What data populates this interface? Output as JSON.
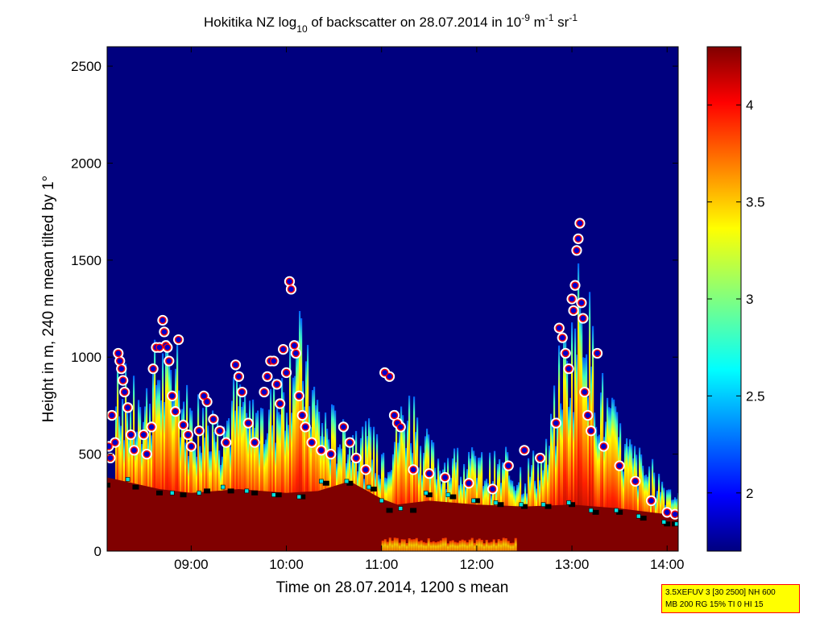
{
  "chart_data": {
    "type": "heatmap",
    "title": {
      "part1": "Hokitika NZ log",
      "sub": "10",
      "part2": " of backscatter on 28.07.2014 in 10",
      "sup1": "-9",
      "part3": " m",
      "sup2": "-1",
      "part4": " sr",
      "sup3": "-1"
    },
    "xlabel": "Time on 28.07.2014, 1200 s mean",
    "ylabel": "Height in m, 240 m mean tilted by 1°",
    "xlim": [
      "08:07",
      "14:07"
    ],
    "ylim": [
      0,
      2600
    ],
    "x_ticks": [
      "09:00",
      "10:00",
      "11:00",
      "12:00",
      "13:00",
      "14:00"
    ],
    "y_ticks": [
      "0",
      "500",
      "1000",
      "1500",
      "2000",
      "2500"
    ],
    "colorbar": {
      "range": [
        1.7,
        4.3
      ],
      "ticks": [
        "2",
        "2.5",
        "3",
        "3.5",
        "4"
      ]
    },
    "background_value": 1.7,
    "surface_layer": {
      "description_value": 4.3,
      "top_profile": [
        [
          "08:07",
          380
        ],
        [
          "08:40",
          320
        ],
        [
          "09:00",
          300
        ],
        [
          "09:30",
          320
        ],
        [
          "10:00",
          300
        ],
        [
          "10:20",
          310
        ],
        [
          "10:40",
          360
        ],
        [
          "11:00",
          270
        ],
        [
          "11:10",
          240
        ],
        [
          "11:30",
          260
        ],
        [
          "12:00",
          240
        ],
        [
          "12:30",
          230
        ],
        [
          "13:00",
          240
        ],
        [
          "13:30",
          220
        ],
        [
          "14:00",
          190
        ],
        [
          "14:07",
          180
        ]
      ]
    },
    "aerosol_plumes": [
      [
        "08:12",
        1100
      ],
      [
        "08:18",
        980
      ],
      [
        "08:28",
        840
      ],
      [
        "08:38",
        1180
      ],
      [
        "08:48",
        1090
      ],
      [
        "08:58",
        850
      ],
      [
        "09:08",
        900
      ],
      [
        "09:18",
        760
      ],
      [
        "09:28",
        980
      ],
      [
        "09:38",
        830
      ],
      [
        "09:48",
        890
      ],
      [
        "09:58",
        1040
      ],
      [
        "10:04",
        1380
      ],
      [
        "10:12",
        1080
      ],
      [
        "10:22",
        820
      ],
      [
        "10:32",
        760
      ],
      [
        "10:42",
        700
      ],
      [
        "10:52",
        660
      ],
      [
        "11:02",
        640
      ],
      [
        "11:15",
        910
      ],
      [
        "11:30",
        600
      ],
      [
        "11:50",
        560
      ],
      [
        "12:10",
        520
      ],
      [
        "12:30",
        500
      ],
      [
        "12:45",
        620
      ],
      [
        "12:52",
        1180
      ],
      [
        "13:00",
        1300
      ],
      [
        "13:05",
        1720
      ],
      [
        "13:15",
        1020
      ],
      [
        "13:30",
        680
      ],
      [
        "13:45",
        520
      ],
      [
        "14:00",
        400
      ]
    ],
    "series": [
      {
        "marker": "circle-white-edge",
        "color": "#ff0000",
        "fill": "#0000cc",
        "points": [
          [
            "08:08",
            540
          ],
          [
            "08:09",
            480
          ],
          [
            "08:10",
            700
          ],
          [
            "08:12",
            560
          ],
          [
            "08:14",
            1020
          ],
          [
            "08:15",
            980
          ],
          [
            "08:16",
            940
          ],
          [
            "08:17",
            880
          ],
          [
            "08:18",
            820
          ],
          [
            "08:20",
            740
          ],
          [
            "08:22",
            600
          ],
          [
            "08:24",
            520
          ],
          [
            "08:30",
            600
          ],
          [
            "08:32",
            500
          ],
          [
            "08:35",
            640
          ],
          [
            "08:36",
            940
          ],
          [
            "08:38",
            1050
          ],
          [
            "08:40",
            1050
          ],
          [
            "08:42",
            1190
          ],
          [
            "08:43",
            1130
          ],
          [
            "08:44",
            1060
          ],
          [
            "08:45",
            1050
          ],
          [
            "08:46",
            980
          ],
          [
            "08:48",
            800
          ],
          [
            "08:50",
            720
          ],
          [
            "08:52",
            1090
          ],
          [
            "08:55",
            650
          ],
          [
            "08:58",
            600
          ],
          [
            "09:00",
            540
          ],
          [
            "09:05",
            620
          ],
          [
            "09:08",
            800
          ],
          [
            "09:10",
            770
          ],
          [
            "09:14",
            680
          ],
          [
            "09:18",
            620
          ],
          [
            "09:22",
            560
          ],
          [
            "09:28",
            960
          ],
          [
            "09:30",
            900
          ],
          [
            "09:32",
            820
          ],
          [
            "09:36",
            660
          ],
          [
            "09:40",
            560
          ],
          [
            "09:46",
            820
          ],
          [
            "09:48",
            900
          ],
          [
            "09:50",
            980
          ],
          [
            "09:52",
            980
          ],
          [
            "09:54",
            860
          ],
          [
            "09:56",
            760
          ],
          [
            "09:58",
            1040
          ],
          [
            "10:00",
            920
          ],
          [
            "10:02",
            1390
          ],
          [
            "10:03",
            1350
          ],
          [
            "10:05",
            1060
          ],
          [
            "10:06",
            1020
          ],
          [
            "10:08",
            800
          ],
          [
            "10:10",
            700
          ],
          [
            "10:12",
            640
          ],
          [
            "10:16",
            560
          ],
          [
            "10:22",
            520
          ],
          [
            "10:28",
            500
          ],
          [
            "10:36",
            640
          ],
          [
            "10:40",
            560
          ],
          [
            "10:44",
            480
          ],
          [
            "10:50",
            420
          ],
          [
            "11:02",
            920
          ],
          [
            "11:05",
            900
          ],
          [
            "11:08",
            700
          ],
          [
            "11:10",
            660
          ],
          [
            "11:12",
            640
          ],
          [
            "11:20",
            420
          ],
          [
            "11:30",
            400
          ],
          [
            "11:40",
            380
          ],
          [
            "11:55",
            350
          ],
          [
            "12:10",
            320
          ],
          [
            "12:20",
            440
          ],
          [
            "12:30",
            520
          ],
          [
            "12:40",
            480
          ],
          [
            "12:50",
            660
          ],
          [
            "12:52",
            1150
          ],
          [
            "12:54",
            1100
          ],
          [
            "12:56",
            1020
          ],
          [
            "12:58",
            940
          ],
          [
            "13:00",
            1300
          ],
          [
            "13:01",
            1240
          ],
          [
            "13:02",
            1370
          ],
          [
            "13:03",
            1550
          ],
          [
            "13:04",
            1610
          ],
          [
            "13:05",
            1690
          ],
          [
            "13:06",
            1280
          ],
          [
            "13:07",
            1200
          ],
          [
            "13:08",
            820
          ],
          [
            "13:10",
            700
          ],
          [
            "13:12",
            620
          ],
          [
            "13:16",
            1020
          ],
          [
            "13:20",
            540
          ],
          [
            "13:30",
            440
          ],
          [
            "13:40",
            360
          ],
          [
            "13:50",
            260
          ],
          [
            "14:00",
            200
          ],
          [
            "14:05",
            190
          ]
        ]
      },
      {
        "marker": "black-square",
        "color": "#000000",
        "points": [
          [
            "08:07",
            340
          ],
          [
            "08:25",
            330
          ],
          [
            "08:40",
            300
          ],
          [
            "08:55",
            290
          ],
          [
            "09:10",
            310
          ],
          [
            "09:25",
            310
          ],
          [
            "09:40",
            300
          ],
          [
            "09:55",
            290
          ],
          [
            "10:10",
            280
          ],
          [
            "10:25",
            350
          ],
          [
            "10:40",
            350
          ],
          [
            "10:55",
            320
          ],
          [
            "11:05",
            210
          ],
          [
            "11:20",
            210
          ],
          [
            "11:30",
            290
          ],
          [
            "11:45",
            280
          ],
          [
            "12:00",
            260
          ],
          [
            "12:15",
            240
          ],
          [
            "12:30",
            230
          ],
          [
            "12:45",
            230
          ],
          [
            "13:00",
            240
          ],
          [
            "13:15",
            200
          ],
          [
            "13:30",
            200
          ],
          [
            "13:45",
            170
          ],
          [
            "14:00",
            140
          ],
          [
            "14:05",
            140
          ]
        ]
      },
      {
        "marker": "cyan-square",
        "color": "#00e0e0",
        "points": [
          [
            "08:20",
            370
          ],
          [
            "08:48",
            300
          ],
          [
            "09:05",
            300
          ],
          [
            "09:20",
            330
          ],
          [
            "09:35",
            310
          ],
          [
            "09:52",
            290
          ],
          [
            "10:08",
            280
          ],
          [
            "10:22",
            360
          ],
          [
            "10:38",
            360
          ],
          [
            "10:52",
            330
          ],
          [
            "11:00",
            260
          ],
          [
            "11:12",
            220
          ],
          [
            "11:28",
            300
          ],
          [
            "11:42",
            290
          ],
          [
            "11:58",
            260
          ],
          [
            "12:12",
            250
          ],
          [
            "12:28",
            240
          ],
          [
            "12:42",
            240
          ],
          [
            "12:58",
            250
          ],
          [
            "13:12",
            210
          ],
          [
            "13:28",
            210
          ],
          [
            "13:42",
            180
          ],
          [
            "13:58",
            150
          ],
          [
            "14:06",
            140
          ]
        ]
      }
    ],
    "grid": false,
    "legend": "none"
  },
  "info_box": {
    "line1": "3.5XEFUV 3 [30 2500] NH 600",
    "line2": "MB 200 RG 15% TI 0 HI 15"
  },
  "colors": {
    "background": "#00007f",
    "max": "#800000"
  }
}
